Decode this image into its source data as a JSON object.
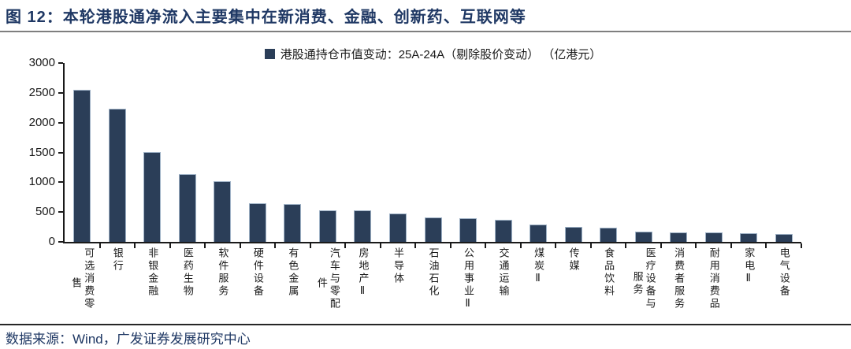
{
  "header": {
    "title": "图 12：本轮港股通净流入主要集中在新消费、金融、创新药、互联网等"
  },
  "chart_data": {
    "type": "bar",
    "title": "图 12：本轮港股通净流入主要集中在新消费、金融、创新药、互联网等",
    "legend": "港股通持仓市值变动：25A-24A（剔除股价变动） （亿港元）",
    "unit": "亿港元",
    "categories": [
      "可选消费零售",
      "银行",
      "非银金融",
      "医药生物",
      "软件服务",
      "硬件设备",
      "有色金属",
      "汽车与零配件",
      "房地产Ⅱ",
      "半导体",
      "石油石化",
      "公用事业Ⅱ",
      "交通运输",
      "煤炭Ⅱ",
      "传媒",
      "食品饮料",
      "医疗设备与服务",
      "消费者服务",
      "耐用消费品",
      "家电Ⅱ",
      "电气设备"
    ],
    "values": [
      2550,
      2230,
      1500,
      1140,
      1020,
      650,
      630,
      530,
      525,
      480,
      405,
      395,
      365,
      295,
      250,
      240,
      170,
      160,
      155,
      150,
      135
    ],
    "ylim": [
      0,
      3000
    ],
    "yticks": [
      0,
      500,
      1000,
      1500,
      2000,
      2500,
      3000
    ],
    "grid": false,
    "legend_position": "top-center",
    "bar_color": "#2B3E58",
    "xlabel": "",
    "ylabel": ""
  },
  "footer": {
    "source": "数据来源：Wind，广发证券发展研究中心"
  },
  "colors": {
    "title_navy": "#1F3864",
    "bar": "#2B3E58",
    "axis": "#1A1A1A",
    "title_rule": "#7F7F7F",
    "footer_rule": "#262626"
  }
}
